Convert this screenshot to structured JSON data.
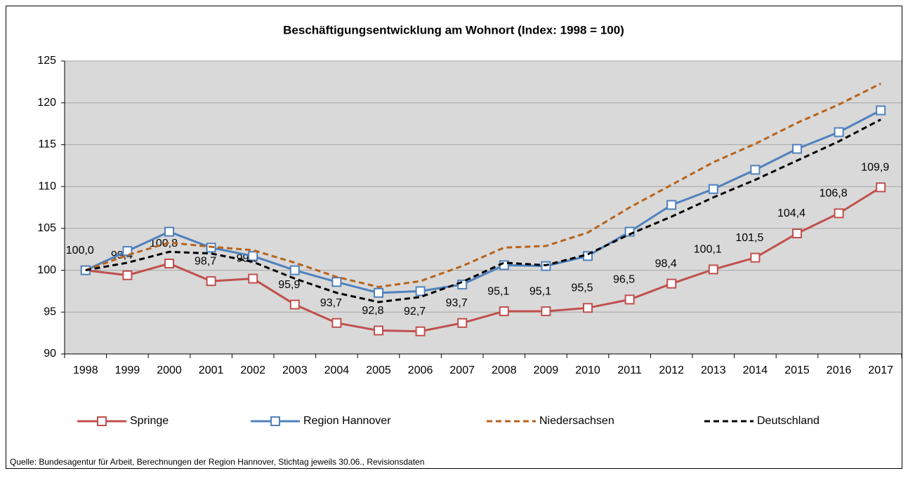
{
  "chart_data": {
    "type": "line",
    "title": "Beschäftigungsentwicklung  am Wohnort  (Index: 1998 = 100)",
    "source": "Quelle: Bundesagentur für Arbeit, Berechnungen  der Region Hannover, Stichtag jeweils 30.06., Revisionsdaten",
    "categories": [
      "1998",
      "1999",
      "2000",
      "2001",
      "2002",
      "2003",
      "2004",
      "2005",
      "2006",
      "2007",
      "2008",
      "2009",
      "2010",
      "2011",
      "2012",
      "2013",
      "2014",
      "2015",
      "2016",
      "2017"
    ],
    "ylim": [
      90,
      125
    ],
    "yticks": [
      90,
      95,
      100,
      105,
      110,
      115,
      120,
      125
    ],
    "grid": true,
    "legend": "bottom",
    "series": [
      {
        "name": "Springe",
        "color": "#c0504d",
        "line_style": "solid",
        "marker": "square",
        "values": [
          100.0,
          99.4,
          100.8,
          98.7,
          99.0,
          95.9,
          93.7,
          92.8,
          92.7,
          93.7,
          95.1,
          95.1,
          95.5,
          96.5,
          98.4,
          100.1,
          101.5,
          104.4,
          106.8,
          109.9
        ],
        "value_labels": [
          "100,0",
          "99,4",
          "100,8",
          "98,7",
          "99,0",
          "95,9",
          "93,7",
          "92,8",
          "92,7",
          "93,7",
          "95,1",
          "95,1",
          "95,5",
          "96,5",
          "98,4",
          "100,1",
          "101,5",
          "104,4",
          "106,8",
          "109,9"
        ]
      },
      {
        "name": "Region Hannover",
        "color": "#4f81bd",
        "line_style": "solid",
        "marker": "square",
        "values": [
          100.0,
          102.3,
          104.6,
          102.7,
          101.7,
          100.0,
          98.6,
          97.3,
          97.5,
          98.3,
          100.6,
          100.5,
          101.7,
          104.6,
          107.8,
          109.7,
          112.0,
          114.5,
          116.5,
          119.1
        ]
      },
      {
        "name": "Niedersachsen",
        "color": "#b8621b",
        "line_style": "dashed",
        "marker": "none",
        "values": [
          100.0,
          101.8,
          103.3,
          102.8,
          102.4,
          100.9,
          99.2,
          98.0,
          98.7,
          100.5,
          102.7,
          102.9,
          104.5,
          107.5,
          110.2,
          112.9,
          115.1,
          117.6,
          119.8,
          122.3
        ]
      },
      {
        "name": "Deutschland",
        "color": "#000000",
        "line_style": "dashed",
        "marker": "none",
        "values": [
          100.0,
          100.9,
          102.2,
          102.0,
          101.0,
          99.0,
          97.3,
          96.2,
          96.8,
          98.6,
          100.9,
          100.6,
          101.9,
          104.3,
          106.4,
          108.7,
          110.8,
          113.1,
          115.4,
          118.0
        ]
      }
    ]
  }
}
